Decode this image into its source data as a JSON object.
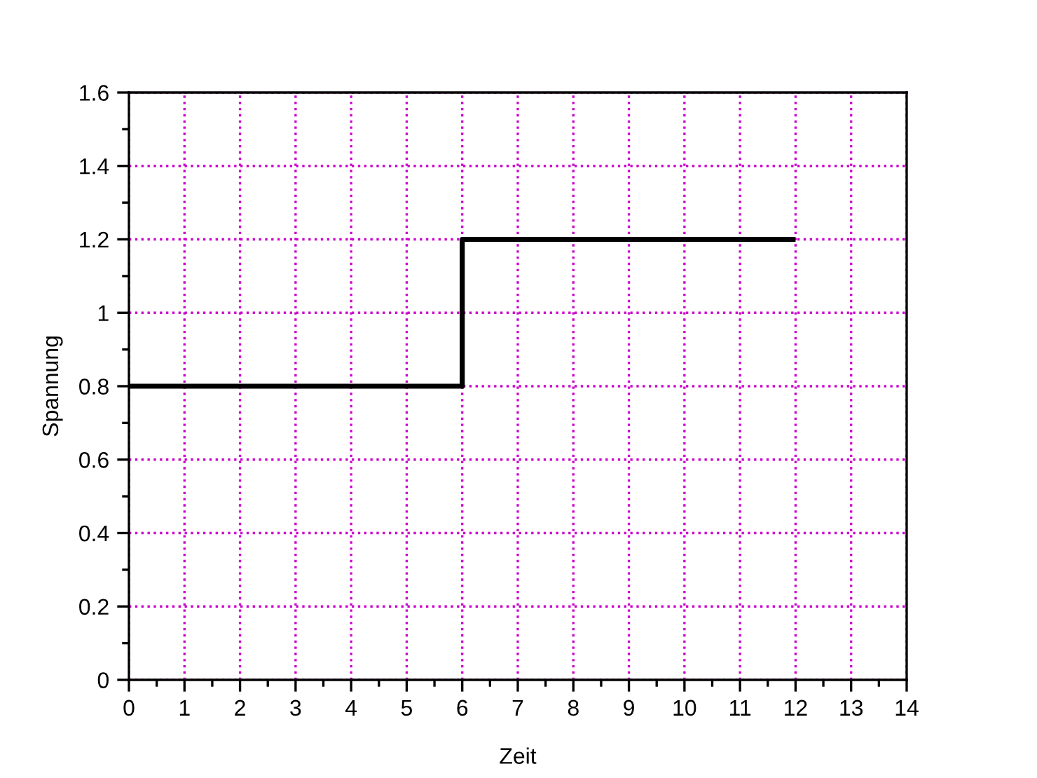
{
  "chart_data": {
    "type": "step",
    "xlabel": "Zeit",
    "ylabel": "Spannung",
    "x": [
      0,
      6,
      12
    ],
    "values": [
      0.8,
      1.2,
      1.2
    ],
    "color": "#000000",
    "line_style": "solid",
    "xlim": [
      0,
      14
    ],
    "ylim": [
      0,
      1.6
    ],
    "xticks": [
      0,
      {
        "value": 0.5,
        "label": null
      },
      1,
      {
        "value": 1.5,
        "label": null
      },
      2,
      {
        "value": 2.5,
        "label": null
      },
      3,
      {
        "value": 3.5,
        "label": null
      },
      4,
      {
        "value": 4.5,
        "label": null
      },
      5,
      {
        "value": 5.5,
        "label": null
      },
      6,
      {
        "value": 6.5,
        "label": null
      },
      7,
      {
        "value": 7.5,
        "label": null
      },
      8,
      {
        "value": 8.5,
        "label": null
      },
      9,
      {
        "value": 9.5,
        "label": null
      },
      10,
      {
        "value": 10.5,
        "label": null
      },
      11,
      {
        "value": 11.5,
        "label": null
      },
      12,
      {
        "value": 12.5,
        "label": null
      },
      13,
      {
        "value": 13.5,
        "label": null
      },
      14
    ],
    "yticks": [
      0,
      {
        "value": 0.1,
        "label": null
      },
      0.2,
      {
        "value": 0.3,
        "label": null
      },
      0.4,
      {
        "value": 0.5,
        "label": null
      },
      0.6,
      {
        "value": 0.7,
        "label": null
      },
      0.8,
      {
        "value": 0.9,
        "label": null
      },
      1,
      {
        "value": 1.1,
        "label": null
      },
      1.2,
      {
        "value": 1.3,
        "label": null
      },
      1.4,
      {
        "value": 1.5,
        "label": null
      },
      1.6
    ],
    "grid": true
  }
}
